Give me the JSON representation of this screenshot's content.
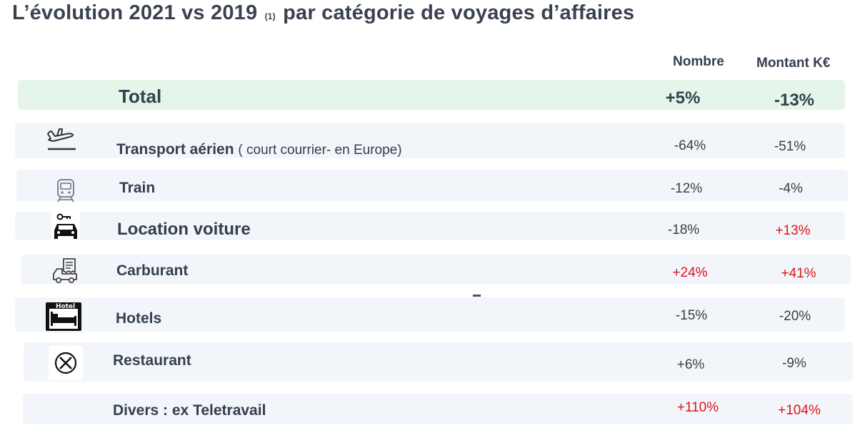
{
  "title": {
    "main": "L’évolution 2021 vs 2019",
    "footnote": "(1)",
    "rest": "par catégorie de voyages d’affaires"
  },
  "columns": {
    "count": "Nombre",
    "amount": "Montant K€"
  },
  "total": {
    "label": "Total",
    "count": "+5%",
    "amount": "-13%"
  },
  "rows": [
    {
      "label": "Transport aérien",
      "note": "( court courrier- en Europe)",
      "icon": "airplane-departure-icon",
      "count": "-64%",
      "amount": "-51%"
    },
    {
      "label": "Train",
      "icon": "train-icon",
      "count": "-12%",
      "amount": "-4%"
    },
    {
      "label": "Location voiture",
      "icon": "car-key-icon",
      "count": "-18%",
      "amount": "+13%"
    },
    {
      "label": "Carburant",
      "icon": "fuel-receipt-icon",
      "count": "+24%",
      "amount": "+41%"
    },
    {
      "label": "Hotels",
      "icon": "hotel-bed-icon",
      "icon_text": "Hotel",
      "count": "-15%",
      "amount": "-20%"
    },
    {
      "label": "Restaurant",
      "icon": "fork-knife-icon",
      "count": "+6%",
      "amount": "-9%"
    },
    {
      "label": "Divers :  ex Teletravail",
      "count": "+110%",
      "amount": "+104%"
    }
  ],
  "colors": {
    "negative_text": "#3b3f45",
    "positive_text": "#d9161c",
    "total_row_bg": "#e5f5ea",
    "row_bg": "#f2f5f9"
  }
}
